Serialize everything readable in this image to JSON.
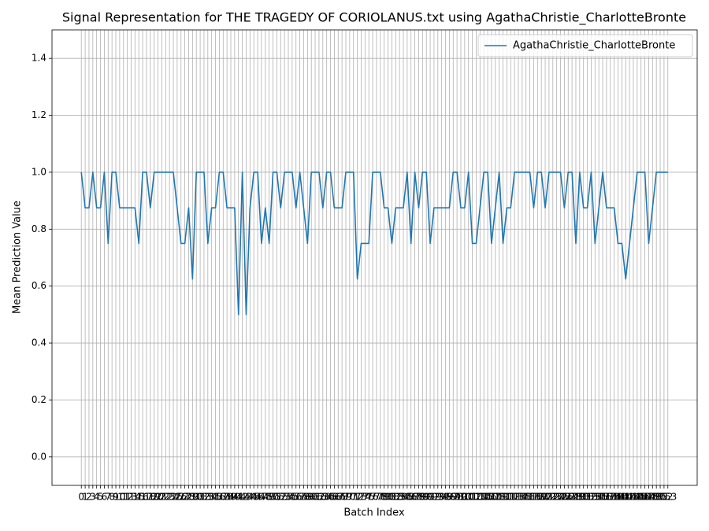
{
  "chart_data": {
    "type": "line",
    "title": "Signal Representation for THE TRAGEDY OF CORIOLANUS.txt using AgathaChristie_CharlotteBronte",
    "xlabel": "Batch Index",
    "ylabel": "Mean Prediction Value",
    "x": [
      0,
      1,
      2,
      3,
      4,
      5,
      6,
      7,
      8,
      9,
      10,
      11,
      12,
      13,
      14,
      15,
      16,
      17,
      18,
      19,
      20,
      21,
      22,
      23,
      24,
      25,
      26,
      27,
      28,
      29,
      30,
      31,
      32,
      33,
      34,
      35,
      36,
      37,
      38,
      39,
      40,
      41,
      42,
      43,
      44,
      45,
      46,
      47,
      48,
      49,
      50,
      51,
      52,
      53,
      54,
      55,
      56,
      57,
      58,
      59,
      60,
      61,
      62,
      63,
      64,
      65,
      66,
      67,
      68,
      69,
      70,
      71,
      72,
      73,
      74,
      75,
      76,
      77,
      78,
      79,
      80,
      81,
      82,
      83,
      84,
      85,
      86,
      87,
      88,
      89,
      90,
      91,
      92,
      93,
      94,
      95,
      96,
      97,
      98,
      99,
      100,
      101,
      102,
      103,
      104,
      105,
      106,
      107,
      108,
      109,
      110,
      111,
      112,
      113,
      114,
      115,
      116,
      117,
      118,
      119,
      120,
      121,
      122,
      123,
      124,
      125,
      126,
      127,
      128,
      129,
      130,
      131,
      132,
      133,
      134,
      135,
      136,
      137,
      138,
      139,
      140,
      141,
      142,
      143,
      144,
      145,
      146,
      147,
      148,
      149,
      150,
      151,
      152,
      153
    ],
    "series": [
      {
        "name": "AgathaChristie_CharlotteBronte",
        "color": "#1f77b4",
        "values": [
          1,
          0.875,
          0.875,
          1,
          0.875,
          0.875,
          1,
          0.75,
          1,
          1,
          0.875,
          0.875,
          0.875,
          0.875,
          0.875,
          0.75,
          1,
          1,
          0.875,
          1,
          1,
          1,
          1,
          1,
          1,
          0.875,
          0.75,
          0.75,
          0.875,
          0.625,
          1,
          1,
          1,
          0.75,
          0.875,
          0.875,
          1,
          1,
          0.875,
          0.875,
          0.875,
          0.5,
          1,
          0.5,
          0.875,
          1,
          1,
          0.75,
          0.875,
          0.75,
          1,
          1,
          0.875,
          1,
          1,
          1,
          0.875,
          1,
          0.875,
          0.75,
          1,
          1,
          1,
          0.875,
          1,
          1,
          0.875,
          0.875,
          0.875,
          1,
          1,
          1,
          0.625,
          0.75,
          0.75,
          0.75,
          1,
          1,
          1,
          0.875,
          0.875,
          0.75,
          0.875,
          0.875,
          0.875,
          1,
          0.75,
          1,
          0.875,
          1,
          1,
          0.75,
          0.875,
          0.875,
          0.875,
          0.875,
          0.875,
          1,
          1,
          0.875,
          0.875,
          1,
          0.75,
          0.75,
          0.875,
          1,
          1,
          0.75,
          0.875,
          1,
          0.75,
          0.875,
          0.875,
          1,
          1,
          1,
          1,
          1,
          0.875,
          1,
          1,
          0.875,
          1,
          1,
          1,
          1,
          0.875,
          1,
          1,
          0.75,
          1,
          0.875,
          0.875,
          1,
          0.75,
          0.875,
          1,
          0.875,
          0.875,
          0.875,
          0.75,
          0.75,
          0.625,
          0.75,
          0.875,
          1,
          1,
          1,
          0.75,
          0.875,
          1,
          1,
          1,
          1
        ]
      }
    ],
    "xlim": [
      -7.65,
      160.65
    ],
    "xticks": [
      0,
      1,
      2,
      3,
      4,
      5,
      6,
      7,
      8,
      9,
      10,
      11,
      12,
      13,
      14,
      15,
      16,
      17,
      18,
      19,
      20,
      21,
      22,
      23,
      24,
      25,
      26,
      27,
      28,
      29,
      30,
      31,
      32,
      33,
      34,
      35,
      36,
      37,
      38,
      39,
      40,
      41,
      42,
      43,
      44,
      45,
      46,
      47,
      48,
      49,
      50,
      51,
      52,
      53,
      54,
      55,
      56,
      57,
      58,
      59,
      60,
      61,
      62,
      63,
      64,
      65,
      66,
      67,
      68,
      69,
      70,
      71,
      72,
      73,
      74,
      75,
      76,
      77,
      78,
      79,
      80,
      81,
      82,
      83,
      84,
      85,
      86,
      87,
      88,
      89,
      90,
      91,
      92,
      93,
      94,
      95,
      96,
      97,
      98,
      99,
      100,
      101,
      102,
      103,
      104,
      105,
      106,
      107,
      108,
      109,
      110,
      111,
      112,
      113,
      114,
      115,
      116,
      117,
      118,
      119,
      120,
      121,
      122,
      123,
      124,
      125,
      126,
      127,
      128,
      129,
      130,
      131,
      132,
      133,
      134,
      135,
      136,
      137,
      138,
      139,
      140,
      141,
      142,
      143,
      144,
      145,
      146,
      147,
      148,
      149,
      150,
      151,
      152,
      153
    ],
    "ylim": [
      -0.1,
      1.5
    ],
    "yticks": [
      {
        "value": 0,
        "label": "0.0"
      },
      0.2,
      0.4,
      0.6,
      0.8,
      {
        "value": 1,
        "label": "1.0"
      },
      1.2,
      1.4
    ],
    "grid": true,
    "legend": "upper right"
  }
}
